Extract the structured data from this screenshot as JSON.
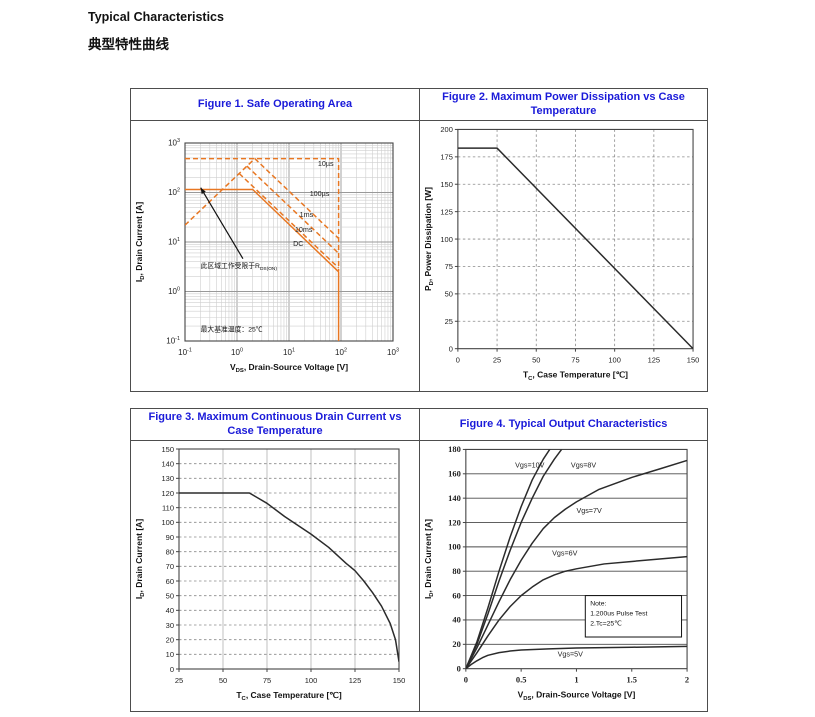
{
  "page": {
    "heading_en": "Typical Characteristics",
    "heading_zh": "典型特性曲线"
  },
  "chart_data": [
    {
      "id": "fig1",
      "type": "line",
      "scale": "log",
      "title": "Figure 1. Safe Operating Area",
      "xlabel": "V~DS~, Drain-Source Voltage [V]",
      "ylabel": "I~D~, Drain Current [A]",
      "xlim": [
        0.1,
        1000
      ],
      "ylim": [
        0.1,
        1000
      ],
      "line_color": "#E87722",
      "series": [
        {
          "name": "rdson-limit-line",
          "dash": true,
          "points": [
            [
              0.1,
              22
            ],
            [
              2.2,
              484
            ]
          ]
        },
        {
          "name": "10us-limit",
          "dash": true,
          "points": [
            [
              0.1,
              484
            ],
            [
              90,
              484
            ],
            [
              90,
              2.6
            ]
          ]
        },
        {
          "name": "100us-limit",
          "dash": true,
          "points": [
            [
              2.2,
              484
            ],
            [
              90,
              11.8
            ]
          ]
        },
        {
          "name": "1ms-limit",
          "dash": true,
          "points": [
            [
              1.55,
              341
            ],
            [
              90,
              5.9
            ]
          ]
        },
        {
          "name": "10ms-limit",
          "dash": true,
          "points": [
            [
              1.1,
              242
            ],
            [
              90,
              3.0
            ]
          ]
        },
        {
          "name": "dc-limit",
          "dash": false,
          "points": [
            [
              0.1,
              115
            ],
            [
              2.0,
              115
            ],
            [
              90,
              2.5
            ],
            [
              90,
              0.1
            ]
          ]
        }
      ],
      "labels": [
        {
          "text": "10µs",
          "x": 36,
          "y": 340
        },
        {
          "text": "100µs",
          "x": 25,
          "y": 85
        },
        {
          "text": "1ms",
          "x": 16,
          "y": 32
        },
        {
          "text": "10ms",
          "x": 13,
          "y": 16
        },
        {
          "text": "DC",
          "x": 12,
          "y": 8.3
        }
      ],
      "annotations": [
        {
          "text": "此区域工作受限于R~DS(ON)~",
          "x": 0.2,
          "y": 3.0
        },
        {
          "text": "最大基准温度：25℃",
          "x": 0.2,
          "y": 0.155
        }
      ],
      "arrow": {
        "x1": 1.3,
        "y1": 4.6,
        "x2": 0.2,
        "y2": 125
      }
    },
    {
      "id": "fig2",
      "type": "line",
      "scale": "linear",
      "title": "Figure 2. Maximum Power Dissipation vs Case Temperature",
      "xlabel": "T~C~, Case Temperature [℃]",
      "ylabel": "P~D~, Power Dissipation [W]",
      "xlim": [
        0,
        150
      ],
      "ylim": [
        0,
        200
      ],
      "xticks": [
        0,
        25,
        50,
        75,
        100,
        125,
        150
      ],
      "yticks": [
        0,
        25,
        50,
        75,
        100,
        125,
        150,
        175,
        200
      ],
      "grid": {
        "h": "dashed",
        "v": "dashed"
      },
      "line_color": "#2b2b2b",
      "series": [
        {
          "name": "max-power-dissipation",
          "points": [
            [
              0,
              183
            ],
            [
              25,
              183
            ],
            [
              150,
              0
            ]
          ]
        }
      ]
    },
    {
      "id": "fig3",
      "type": "line",
      "scale": "linear",
      "title": "Figure 3. Maximum Continuous Drain Current vs Case Temperature",
      "xlabel": "T~C~, Case Temperature [℃]",
      "ylabel": "I~D~, Drain Current [A]",
      "xlim": [
        25,
        150
      ],
      "ylim": [
        0,
        150
      ],
      "xticks": [
        25,
        50,
        75,
        100,
        125,
        150
      ],
      "yticks": [
        0,
        10,
        20,
        30,
        40,
        50,
        60,
        70,
        80,
        90,
        100,
        110,
        120,
        130,
        140,
        150
      ],
      "grid": {
        "h": "dashed",
        "v": "solid"
      },
      "line_color": "#2b2b2b",
      "series": [
        {
          "name": "max-continuous-drain-current",
          "points": [
            [
              25,
              120
            ],
            [
              65,
              120
            ],
            [
              75,
              113
            ],
            [
              85,
              104
            ],
            [
              95,
              96
            ],
            [
              100,
              92
            ],
            [
              110,
              83
            ],
            [
              120,
              72
            ],
            [
              125,
              67
            ],
            [
              130,
              60
            ],
            [
              135,
              52
            ],
            [
              140,
              43
            ],
            [
              145,
              31
            ],
            [
              148,
              20
            ],
            [
              150,
              5
            ]
          ]
        }
      ]
    },
    {
      "id": "fig4",
      "type": "line",
      "scale": "linear",
      "title": "Figure 4. Typical Output Characteristics",
      "xlabel": "V~DS~, Drain-Source Voltage [V]",
      "ylabel": "I~D~, Drain Current [A]",
      "xlim": [
        0,
        2
      ],
      "ylim": [
        0,
        180
      ],
      "xticks": [
        0,
        0.5,
        1,
        1.5,
        2
      ],
      "yticks": [
        0,
        20,
        40,
        60,
        80,
        100,
        120,
        140,
        160,
        180
      ],
      "grid": {
        "h": "solid",
        "v": "none"
      },
      "line_color": "#2b2b2b",
      "series": [
        {
          "name": "vgs-10v",
          "points": [
            [
              0,
              0
            ],
            [
              0.1,
              22
            ],
            [
              0.2,
              50
            ],
            [
              0.3,
              80
            ],
            [
              0.4,
              108
            ],
            [
              0.5,
              133
            ],
            [
              0.6,
              155
            ],
            [
              0.7,
              172
            ],
            [
              0.78,
              183
            ]
          ]
        },
        {
          "name": "vgs-8v",
          "points": [
            [
              0,
              0
            ],
            [
              0.1,
              20
            ],
            [
              0.2,
              45
            ],
            [
              0.3,
              72
            ],
            [
              0.4,
              97
            ],
            [
              0.5,
              120
            ],
            [
              0.6,
              140
            ],
            [
              0.7,
              158
            ],
            [
              0.8,
              172
            ],
            [
              0.89,
              183
            ]
          ]
        },
        {
          "name": "vgs-7v",
          "points": [
            [
              0,
              0
            ],
            [
              0.1,
              17
            ],
            [
              0.2,
              36
            ],
            [
              0.3,
              55
            ],
            [
              0.4,
              73
            ],
            [
              0.5,
              89
            ],
            [
              0.6,
              103
            ],
            [
              0.7,
              115
            ],
            [
              0.8,
              124
            ],
            [
              0.9,
              131
            ],
            [
              1,
              137
            ],
            [
              1.2,
              147
            ],
            [
              1.5,
              157
            ],
            [
              1.75,
              164
            ],
            [
              2,
              171
            ]
          ]
        },
        {
          "name": "vgs-6v",
          "points": [
            [
              0,
              0
            ],
            [
              0.1,
              13
            ],
            [
              0.2,
              27
            ],
            [
              0.3,
              40
            ],
            [
              0.4,
              51
            ],
            [
              0.5,
              60
            ],
            [
              0.6,
              67
            ],
            [
              0.7,
              73
            ],
            [
              0.8,
              77
            ],
            [
              0.9,
              80
            ],
            [
              1,
              82
            ],
            [
              1.25,
              86
            ],
            [
              1.5,
              88
            ],
            [
              2,
              92
            ]
          ]
        },
        {
          "name": "vgs-5v",
          "points": [
            [
              0,
              0
            ],
            [
              0.05,
              3.5
            ],
            [
              0.1,
              6.5
            ],
            [
              0.15,
              9
            ],
            [
              0.2,
              11
            ],
            [
              0.3,
              13.2
            ],
            [
              0.4,
              14.5
            ],
            [
              0.5,
              15.3
            ],
            [
              0.75,
              16.3
            ],
            [
              1,
              16.9
            ],
            [
              1.5,
              17.6
            ],
            [
              2,
              18.3
            ]
          ]
        }
      ],
      "labels": [
        {
          "text": "Vgs=10V",
          "x": 0.71,
          "y": 165,
          "anchor": "end"
        },
        {
          "text": "Vgs=8V",
          "x": 0.95,
          "y": 165,
          "anchor": "start"
        },
        {
          "text": "Vgs=7V",
          "x": 1.0,
          "y": 128,
          "anchor": "start"
        },
        {
          "text": "Vgs=6V",
          "x": 0.78,
          "y": 93,
          "anchor": "start"
        },
        {
          "text": "Vgs=5V",
          "x": 0.83,
          "y": 10,
          "anchor": "start"
        }
      ],
      "note": {
        "lines": [
          "Note:",
          "1.200us Pulse Test",
          "2.Tc=25℃"
        ],
        "x": 1.08,
        "y": 60,
        "x2": 1.95,
        "y2": 26
      }
    }
  ]
}
